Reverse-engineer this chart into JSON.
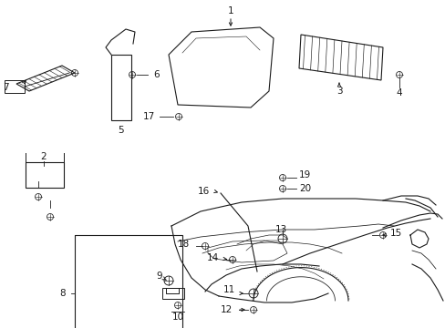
{
  "bg_color": "#ffffff",
  "lc": "#1a1a1a",
  "lw": 0.8,
  "figw": 4.89,
  "figh": 3.6,
  "dpi": 100
}
